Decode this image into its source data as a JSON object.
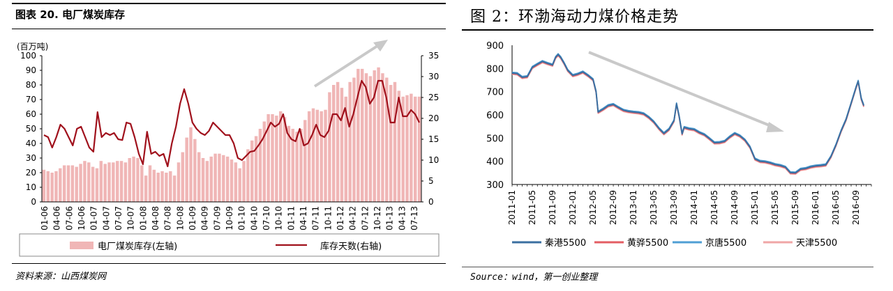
{
  "left_panel": {
    "title": "图表 20. 电厂煤炭库存",
    "source": "资料来源：山西煤炭网",
    "chart_data": {
      "type": "bar+line",
      "y_left": {
        "label": "(百万吨)",
        "range": [
          0,
          100
        ],
        "ticks": [
          0,
          10,
          20,
          30,
          40,
          50,
          60,
          70,
          80,
          90,
          100
        ]
      },
      "y_right": {
        "range": [
          0,
          35
        ],
        "ticks": [
          0,
          5,
          10,
          15,
          20,
          25,
          30,
          35
        ]
      },
      "x_tick_labels": [
        "01-06",
        "04-06",
        "07-06",
        "10-06",
        "01-07",
        "04-07",
        "07-07",
        "10-07",
        "01-08",
        "04-08",
        "07-08",
        "10-08",
        "01-09",
        "04-09",
        "07-09",
        "10-09",
        "01-10",
        "04-10",
        "07-10",
        "10-10",
        "01-11",
        "04-11",
        "07-11",
        "10-11",
        "01-12",
        "04-12",
        "07-12",
        "10-12",
        "01-13",
        "04-13",
        "07-13"
      ],
      "series": [
        {
          "name": "电厂煤炭库存(左轴)",
          "type": "bar",
          "color": "#f0b6b6",
          "axis": "left",
          "values": [
            22,
            21,
            20,
            21,
            23,
            25,
            25,
            25,
            24,
            26,
            28,
            27,
            24,
            23,
            28,
            26,
            27,
            27,
            28,
            28,
            27,
            30,
            31,
            30,
            25,
            18,
            25,
            22,
            20,
            21,
            20,
            21,
            18,
            27,
            34,
            44,
            51,
            43,
            34,
            30,
            28,
            31,
            33,
            33,
            32,
            31,
            29,
            27,
            23,
            28,
            36,
            42,
            45,
            50,
            55,
            60,
            60,
            59,
            62,
            58,
            52,
            50,
            48,
            50,
            56,
            62,
            64,
            63,
            62,
            63,
            75,
            80,
            82,
            78,
            72,
            82,
            85,
            91,
            91,
            88,
            86,
            90,
            92,
            88,
            85,
            80,
            82,
            76,
            72,
            73,
            74,
            72,
            72
          ]
        },
        {
          "name": "库存天数(右轴)",
          "type": "line",
          "color": "#a0111c",
          "axis": "right",
          "values": [
            16,
            15.5,
            13,
            15.5,
            18.5,
            17.5,
            15.5,
            13.5,
            17.5,
            18,
            15.5,
            13,
            12,
            21.5,
            15.5,
            16.5,
            16,
            16.5,
            15,
            14.8,
            19,
            18.7,
            15.5,
            11.5,
            9,
            16.8,
            11.5,
            12,
            11,
            11.5,
            8.5,
            14,
            18,
            23.5,
            27,
            23.5,
            19,
            17.5,
            16.5,
            16,
            17,
            19,
            18,
            17,
            16,
            16,
            14,
            10.5,
            10,
            11,
            12,
            12.2,
            13.5,
            15,
            17,
            19,
            18,
            18.7,
            21,
            16.5,
            15,
            14.5,
            17.5,
            13.5,
            14,
            16,
            18.5,
            16,
            15.5,
            17,
            21,
            21,
            19.5,
            22.5,
            18,
            21,
            25,
            29,
            27.5,
            23.5,
            25,
            29,
            29,
            25,
            19,
            19,
            25,
            20.5,
            20.5,
            22,
            21,
            19
          ]
        }
      ],
      "legend": [
        "电厂煤炭库存(左轴)",
        "库存天数(右轴)"
      ],
      "legend_position": "bottom",
      "trend_arrow_color": "#c9c9c9"
    }
  },
  "right_panel": {
    "title": "图 2：环渤海动力煤价格走势",
    "source": "Source：wind，第一创业整理",
    "chart_data": {
      "type": "line",
      "y_range": [
        300,
        900
      ],
      "y_ticks": [
        300,
        400,
        500,
        600,
        700,
        800,
        900
      ],
      "x_tick_labels": [
        "2011-01",
        "2011-05",
        "2011-09",
        "2012-01",
        "2012-05",
        "2012-09",
        "2013-01",
        "2013-05",
        "2013-09",
        "2014-01",
        "2014-05",
        "2014-09",
        "2015-01",
        "2015-05",
        "2015-09",
        "2016-01",
        "2016-05",
        "2016-09"
      ],
      "anchor_points": [
        [
          0,
          780
        ],
        [
          1,
          778
        ],
        [
          2,
          762
        ],
        [
          3,
          765
        ],
        [
          4,
          805
        ],
        [
          5,
          818
        ],
        [
          6,
          830
        ],
        [
          7,
          822
        ],
        [
          8,
          815
        ],
        [
          8.6,
          848
        ],
        [
          9.1,
          860
        ],
        [
          9.6,
          848
        ],
        [
          10.3,
          822
        ],
        [
          11,
          792
        ],
        [
          12,
          770
        ],
        [
          13,
          776
        ],
        [
          14,
          785
        ],
        [
          15,
          770
        ],
        [
          16,
          752
        ],
        [
          16.6,
          700
        ],
        [
          17,
          612
        ],
        [
          18,
          625
        ],
        [
          19,
          640
        ],
        [
          20,
          645
        ],
        [
          21,
          632
        ],
        [
          22,
          620
        ],
        [
          23,
          615
        ],
        [
          24,
          612
        ],
        [
          25,
          610
        ],
        [
          26,
          605
        ],
        [
          27,
          590
        ],
        [
          28,
          570
        ],
        [
          29,
          542
        ],
        [
          30,
          520
        ],
        [
          31,
          538
        ],
        [
          32,
          575
        ],
        [
          32.5,
          648
        ],
        [
          33,
          595
        ],
        [
          33.6,
          518
        ],
        [
          34,
          546
        ],
        [
          35,
          540
        ],
        [
          36,
          537
        ],
        [
          37,
          524
        ],
        [
          38,
          515
        ],
        [
          39,
          498
        ],
        [
          40,
          480
        ],
        [
          41,
          481
        ],
        [
          42,
          486
        ],
        [
          43,
          505
        ],
        [
          44,
          520
        ],
        [
          45,
          510
        ],
        [
          46,
          492
        ],
        [
          47,
          462
        ],
        [
          48,
          410
        ],
        [
          49,
          400
        ],
        [
          50,
          398
        ],
        [
          51,
          393
        ],
        [
          52,
          386
        ],
        [
          53,
          382
        ],
        [
          54,
          375
        ],
        [
          55,
          351
        ],
        [
          56,
          350
        ],
        [
          57,
          366
        ],
        [
          58,
          369
        ],
        [
          59,
          376
        ],
        [
          60,
          380
        ],
        [
          61,
          382
        ],
        [
          62,
          385
        ],
        [
          63,
          420
        ],
        [
          64,
          470
        ],
        [
          65,
          530
        ],
        [
          66,
          580
        ],
        [
          67,
          650
        ],
        [
          68,
          720
        ],
        [
          68.4,
          745
        ],
        [
          69,
          670
        ],
        [
          69.5,
          640
        ]
      ],
      "series": [
        {
          "name": "秦港5500",
          "color": "#3b6fa1",
          "offset": 0
        },
        {
          "name": "黄骅5500",
          "color": "#e35d63",
          "offset": -3
        },
        {
          "name": "京唐5500",
          "color": "#4f9fd4",
          "offset": 4
        },
        {
          "name": "天津5500",
          "color": "#f0a6a6",
          "offset": -6
        }
      ],
      "legend_position": "bottom",
      "trend_arrow_color": "#c9c9c9"
    }
  }
}
